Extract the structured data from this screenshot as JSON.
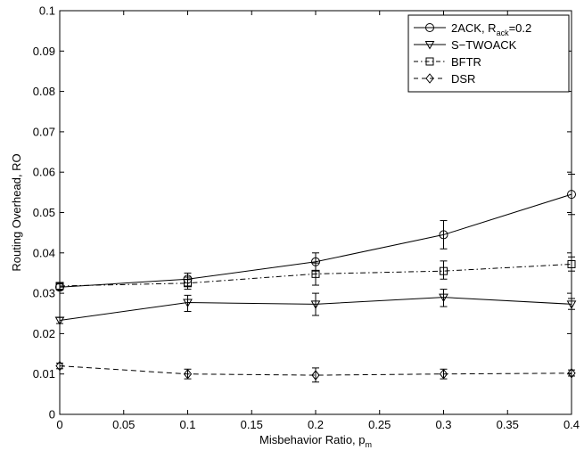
{
  "chart_data": {
    "type": "line",
    "x": [
      0,
      0.1,
      0.2,
      0.3,
      0.4
    ],
    "xlabel_main": "Misbehavior Ratio, p",
    "xlabel_sub": "m",
    "ylabel": "Routing Overhead, RO",
    "xlim": [
      0,
      0.4
    ],
    "ylim": [
      0,
      0.1
    ],
    "xticks": [
      0,
      0.05,
      0.1,
      0.15,
      0.2,
      0.25,
      0.3,
      0.35,
      0.4
    ],
    "xtick_labels": [
      "0",
      "0.05",
      "0.1",
      "0.15",
      "0.2",
      "0.25",
      "0.3",
      "0.35",
      "0.4"
    ],
    "yticks": [
      0,
      0.01,
      0.02,
      0.03,
      0.04,
      0.05,
      0.06,
      0.07,
      0.08,
      0.09,
      0.1
    ],
    "ytick_labels": [
      "0",
      "0.01",
      "0.02",
      "0.03",
      "0.04",
      "0.05",
      "0.06",
      "0.07",
      "0.08",
      "0.09",
      "0.1"
    ],
    "grid": false,
    "legend_position": "top-right",
    "series": [
      {
        "key": "2ack",
        "legend_main": "2ACK, R",
        "legend_sub": "ack",
        "legend_tail": "=0.2",
        "marker": "circle",
        "dash": "solid",
        "color": "#000000",
        "values": [
          0.0315,
          0.0335,
          0.0378,
          0.0445,
          0.0545
        ],
        "err_low": [
          0.0308,
          0.0318,
          0.0355,
          0.041,
          0.0495
        ],
        "err_high": [
          0.0323,
          0.035,
          0.04,
          0.048,
          0.0595
        ]
      },
      {
        "key": "s-twoack",
        "legend_main": "S−TWOACK",
        "marker": "triangle-down",
        "dash": "solid",
        "color": "#000000",
        "values": [
          0.0233,
          0.0277,
          0.0273,
          0.029,
          0.0273
        ],
        "err_low": [
          0.0225,
          0.0255,
          0.0245,
          0.0267,
          0.026
        ],
        "err_high": [
          0.024,
          0.0295,
          0.03,
          0.031,
          0.0287
        ]
      },
      {
        "key": "bftr",
        "legend_main": "BFTR",
        "marker": "square",
        "dash": "dashdot",
        "color": "#000000",
        "values": [
          0.0318,
          0.0325,
          0.0348,
          0.0355,
          0.0372
        ],
        "err_low": [
          0.031,
          0.031,
          0.032,
          0.0335,
          0.0355
        ],
        "err_high": [
          0.0325,
          0.034,
          0.0375,
          0.038,
          0.039
        ]
      },
      {
        "key": "dsr",
        "legend_main": "DSR",
        "marker": "diamond",
        "dash": "dashed",
        "color": "#000000",
        "values": [
          0.012,
          0.01,
          0.0097,
          0.01,
          0.0102
        ],
        "err_low": [
          0.0113,
          0.0088,
          0.008,
          0.0088,
          0.0095
        ],
        "err_high": [
          0.0127,
          0.0112,
          0.0115,
          0.0112,
          0.011
        ]
      }
    ]
  }
}
